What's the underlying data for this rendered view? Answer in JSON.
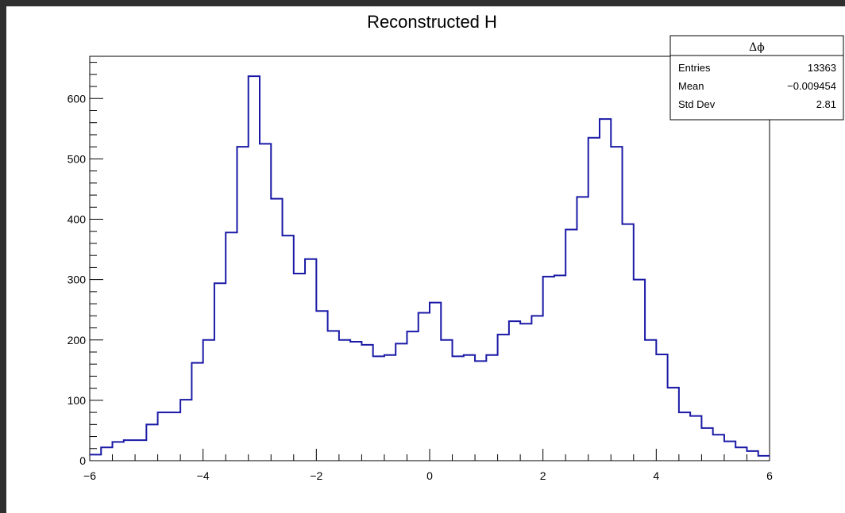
{
  "chart_data": {
    "type": "histogram",
    "title": "Reconstructed H",
    "xlabel": "",
    "ylabel": "",
    "xlim": [
      -6,
      6
    ],
    "ylim": [
      0,
      670
    ],
    "x_ticks": [
      -6,
      -4,
      -2,
      0,
      2,
      4,
      6
    ],
    "x_tick_labels": [
      "−6",
      "−4",
      "−2",
      "0",
      "2",
      "4",
      "6"
    ],
    "y_ticks": [
      0,
      100,
      200,
      300,
      400,
      500,
      600
    ],
    "y_tick_labels": [
      "0",
      "100",
      "200",
      "300",
      "400",
      "500",
      "600"
    ],
    "grid": false,
    "line_color": "#1a1aa6",
    "bins": {
      "min": -6,
      "max": 6,
      "count": 60
    },
    "values": [
      10,
      22,
      31,
      34,
      34,
      60,
      80,
      80,
      101,
      162,
      200,
      294,
      378,
      520,
      637,
      525,
      434,
      373,
      310,
      334,
      248,
      215,
      200,
      197,
      192,
      173,
      175,
      194,
      214,
      245,
      262,
      200,
      173,
      175,
      165,
      175,
      209,
      231,
      227,
      240,
      305,
      307,
      383,
      437,
      535,
      566,
      520,
      392,
      300,
      200,
      176,
      121,
      80,
      74,
      54,
      43,
      32,
      22,
      16,
      8
    ],
    "stats_box": {
      "title": "Δϕ",
      "rows": [
        {
          "label": "Entries",
          "value": "13363"
        },
        {
          "label": "Mean",
          "value": "−0.009454"
        },
        {
          "label": "Std Dev",
          "value": "2.81"
        }
      ]
    }
  }
}
